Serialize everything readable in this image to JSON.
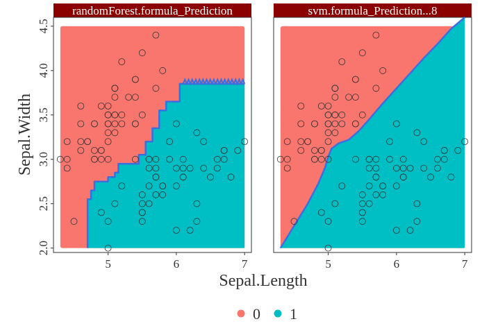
{
  "chart_data": {
    "type": "scatter",
    "xlabel": "Sepal.Length",
    "ylabel": "Sepal.Width",
    "xlim": [
      4.2,
      7.1
    ],
    "ylim": [
      1.95,
      4.6
    ],
    "x_ticks": [
      5,
      6,
      7
    ],
    "x_tick_labels": [
      "5",
      "6",
      "7"
    ],
    "y_ticks": [
      2.0,
      2.5,
      3.0,
      3.5,
      4.0,
      4.5
    ],
    "y_tick_labels": [
      "2.0",
      "2.5",
      "3.0",
      "3.5",
      "4.0",
      "4.5"
    ],
    "grid": false,
    "legend": {
      "position": "bottom",
      "entries": [
        {
          "label": "0",
          "color": "#F8766D"
        },
        {
          "label": "1",
          "color": "#00BFC4"
        }
      ]
    },
    "colors": {
      "class0": "#F8766D",
      "class1": "#00BFC4",
      "boundary": "#3B6FE0",
      "strip_bg": "#8B0000",
      "point_stroke": "#333333"
    },
    "panels": [
      {
        "title": "randomForest.formula_Prediction",
        "boundary": [
          [
            4.7,
            2.0
          ],
          [
            4.7,
            2.55
          ],
          [
            4.75,
            2.55
          ],
          [
            4.75,
            2.65
          ],
          [
            4.8,
            2.65
          ],
          [
            4.8,
            2.75
          ],
          [
            5.0,
            2.75
          ],
          [
            5.0,
            2.8
          ],
          [
            5.1,
            2.8
          ],
          [
            5.1,
            2.85
          ],
          [
            5.15,
            2.85
          ],
          [
            5.15,
            2.95
          ],
          [
            5.45,
            2.95
          ],
          [
            5.45,
            3.05
          ],
          [
            5.55,
            3.05
          ],
          [
            5.55,
            3.2
          ],
          [
            5.65,
            3.2
          ],
          [
            5.65,
            3.35
          ],
          [
            5.75,
            3.35
          ],
          [
            5.75,
            3.55
          ],
          [
            5.85,
            3.55
          ],
          [
            5.85,
            3.65
          ],
          [
            6.05,
            3.65
          ],
          [
            6.05,
            3.85
          ],
          [
            7.0,
            3.85
          ]
        ],
        "boundary_noise_segment": [
          6.1,
          7.0,
          3.85,
          3.9
        ]
      },
      {
        "title": "svm.formula_Prediction...8",
        "boundary": [
          [
            4.3,
            2.0
          ],
          [
            4.5,
            2.25
          ],
          [
            4.7,
            2.5
          ],
          [
            4.85,
            2.72
          ],
          [
            4.95,
            2.9
          ],
          [
            5.0,
            3.03
          ],
          [
            5.05,
            3.12
          ],
          [
            5.15,
            3.18
          ],
          [
            5.3,
            3.22
          ],
          [
            5.45,
            3.32
          ],
          [
            5.6,
            3.45
          ],
          [
            5.8,
            3.63
          ],
          [
            6.0,
            3.8
          ],
          [
            6.2,
            3.97
          ],
          [
            6.4,
            4.14
          ],
          [
            6.6,
            4.3
          ],
          [
            6.8,
            4.47
          ],
          [
            7.0,
            4.6
          ]
        ]
      }
    ],
    "points": [
      [
        5.1,
        3.5
      ],
      [
        4.9,
        3.0
      ],
      [
        4.7,
        3.2
      ],
      [
        4.6,
        3.1
      ],
      [
        5.0,
        3.6
      ],
      [
        5.4,
        3.9
      ],
      [
        4.6,
        3.4
      ],
      [
        5.0,
        3.4
      ],
      [
        4.4,
        2.9
      ],
      [
        4.9,
        3.1
      ],
      [
        5.4,
        3.7
      ],
      [
        4.8,
        3.4
      ],
      [
        4.8,
        3.0
      ],
      [
        4.3,
        3.0
      ],
      [
        5.8,
        4.0
      ],
      [
        5.7,
        4.4
      ],
      [
        5.4,
        3.9
      ],
      [
        5.1,
        3.5
      ],
      [
        5.7,
        3.8
      ],
      [
        5.1,
        3.8
      ],
      [
        5.4,
        3.4
      ],
      [
        5.1,
        3.7
      ],
      [
        4.6,
        3.6
      ],
      [
        5.1,
        3.3
      ],
      [
        4.8,
        3.4
      ],
      [
        5.0,
        3.0
      ],
      [
        5.0,
        3.4
      ],
      [
        5.2,
        3.5
      ],
      [
        5.2,
        3.4
      ],
      [
        4.7,
        3.2
      ],
      [
        4.8,
        3.1
      ],
      [
        5.4,
        3.4
      ],
      [
        5.2,
        4.1
      ],
      [
        5.5,
        4.2
      ],
      [
        4.9,
        3.1
      ],
      [
        5.0,
        3.2
      ],
      [
        5.5,
        3.5
      ],
      [
        4.9,
        3.6
      ],
      [
        4.4,
        3.0
      ],
      [
        5.1,
        3.4
      ],
      [
        5.0,
        3.5
      ],
      [
        4.5,
        2.3
      ],
      [
        4.4,
        3.2
      ],
      [
        5.0,
        3.5
      ],
      [
        5.1,
        3.8
      ],
      [
        4.8,
        3.0
      ],
      [
        5.1,
        3.8
      ],
      [
        4.6,
        3.2
      ],
      [
        5.3,
        3.7
      ],
      [
        5.0,
        3.3
      ],
      [
        7.0,
        3.2
      ],
      [
        6.4,
        3.2
      ],
      [
        6.9,
        3.1
      ],
      [
        5.5,
        2.3
      ],
      [
        6.5,
        2.8
      ],
      [
        5.7,
        2.8
      ],
      [
        6.3,
        3.3
      ],
      [
        4.9,
        2.4
      ],
      [
        6.6,
        2.9
      ],
      [
        5.2,
        2.7
      ],
      [
        5.0,
        2.0
      ],
      [
        5.9,
        3.0
      ],
      [
        6.0,
        2.2
      ],
      [
        6.1,
        2.9
      ],
      [
        5.6,
        2.9
      ],
      [
        6.7,
        3.1
      ],
      [
        5.6,
        3.0
      ],
      [
        5.8,
        2.7
      ],
      [
        6.2,
        2.2
      ],
      [
        5.6,
        2.5
      ],
      [
        5.9,
        3.2
      ],
      [
        6.1,
        2.8
      ],
      [
        6.3,
        2.5
      ],
      [
        6.1,
        2.8
      ],
      [
        6.4,
        2.9
      ],
      [
        6.6,
        3.0
      ],
      [
        6.8,
        2.8
      ],
      [
        6.7,
        3.0
      ],
      [
        6.0,
        2.9
      ],
      [
        5.7,
        2.6
      ],
      [
        5.5,
        2.4
      ],
      [
        5.5,
        2.4
      ],
      [
        5.8,
        2.7
      ],
      [
        6.0,
        2.7
      ],
      [
        5.4,
        3.0
      ],
      [
        6.0,
        3.4
      ],
      [
        6.7,
        3.1
      ],
      [
        6.3,
        2.3
      ],
      [
        5.6,
        3.0
      ],
      [
        5.5,
        2.5
      ],
      [
        5.5,
        2.6
      ],
      [
        6.1,
        3.0
      ],
      [
        5.8,
        2.6
      ],
      [
        5.0,
        2.3
      ],
      [
        5.6,
        2.7
      ],
      [
        5.7,
        3.0
      ],
      [
        5.7,
        2.9
      ],
      [
        6.2,
        2.9
      ],
      [
        5.1,
        2.5
      ],
      [
        5.7,
        2.8
      ]
    ]
  }
}
